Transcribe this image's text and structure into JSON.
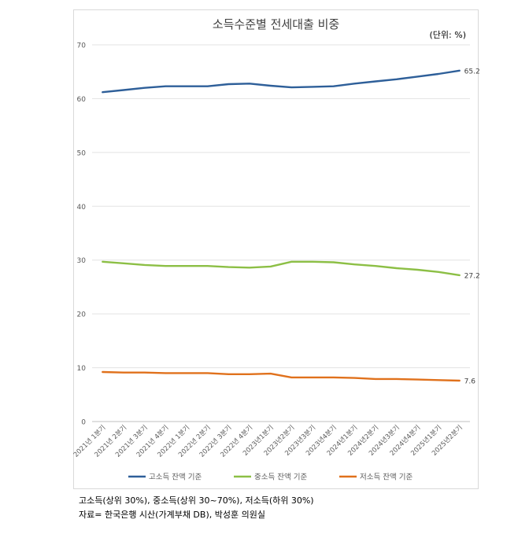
{
  "chart_data": {
    "type": "line",
    "title": "소득수준별 전세대출 비중",
    "unit": "(단위: %)",
    "ylim": [
      0,
      70
    ],
    "yticks": [
      0,
      10,
      20,
      30,
      40,
      50,
      60,
      70
    ],
    "grid": true,
    "legend_position": "bottom",
    "categories": [
      "2021년 1분기",
      "2021년 2분기",
      "2021년 3분기",
      "2021년 4분기",
      "2022년 1분기",
      "2022년 2분기",
      "2022년 3분기",
      "2022년 4분기",
      "2023년1분기",
      "2023년2분기",
      "2023년3분기",
      "2023년4분기",
      "2024년1분기",
      "2024년2분기",
      "2024년3분기",
      "2024년4분기",
      "2025년1분기",
      "2025년2분기"
    ],
    "series": [
      {
        "name": "고소득 잔액 기준",
        "color": "#2e5f99",
        "values": [
          61.2,
          61.6,
          62.0,
          62.3,
          62.3,
          62.3,
          62.7,
          62.8,
          62.4,
          62.1,
          62.2,
          62.3,
          62.8,
          63.2,
          63.6,
          64.1,
          64.6,
          65.2
        ],
        "end_label": "65.2"
      },
      {
        "name": "중소득 잔액 기준",
        "color": "#8cbf45",
        "values": [
          29.7,
          29.4,
          29.1,
          28.9,
          28.9,
          28.9,
          28.7,
          28.6,
          28.8,
          29.7,
          29.7,
          29.6,
          29.2,
          28.9,
          28.5,
          28.2,
          27.8,
          27.2
        ],
        "end_label": "27.2"
      },
      {
        "name": "저소득 잔액 기준",
        "color": "#e0711c",
        "values": [
          9.2,
          9.1,
          9.1,
          9.0,
          9.0,
          9.0,
          8.8,
          8.8,
          8.9,
          8.2,
          8.2,
          8.2,
          8.1,
          7.9,
          7.9,
          7.8,
          7.7,
          7.6
        ],
        "end_label": "7.6"
      }
    ]
  },
  "footnotes": {
    "line1": "고소득(상위 30%), 중소득(상위 30~70%), 저소득(하위 30%)",
    "line2": "자료= 한국은행 시산(가계부채 DB), 박성훈 의원실"
  }
}
